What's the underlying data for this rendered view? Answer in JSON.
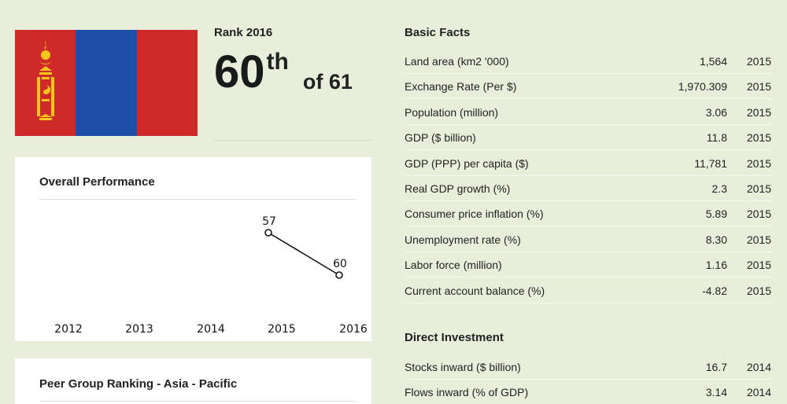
{
  "flag": {
    "country_icon": "mongolia-flag",
    "colors": {
      "red": "#cf2a2a",
      "blue": "#1d4fa8",
      "emblem": "#f5c518"
    }
  },
  "rank": {
    "label": "Rank 2016",
    "number": "60",
    "suffix": "th",
    "of": "of 61"
  },
  "performance": {
    "title": "Overall Performance",
    "chart_data": {
      "type": "line",
      "x": [
        "2012",
        "2013",
        "2014",
        "2015",
        "2016"
      ],
      "series": [
        {
          "values": [
            null,
            null,
            null,
            57,
            60
          ]
        }
      ],
      "data_labels": [
        "",
        "",
        "",
        "57",
        "60"
      ],
      "y_inverted": true,
      "grid": false
    }
  },
  "peer": {
    "title": "Peer Group Ranking - Asia - Pacific"
  },
  "basic_facts": {
    "title": "Basic Facts",
    "rows": [
      {
        "label": "Land area (km2 '000)",
        "value": "1,564",
        "year": "2015"
      },
      {
        "label": "Exchange Rate (Per $)",
        "value": "1,970.309",
        "year": "2015"
      },
      {
        "label": "Population (million)",
        "value": "3.06",
        "year": "2015"
      },
      {
        "label": "GDP ($ billion)",
        "value": "11.8",
        "year": "2015"
      },
      {
        "label": "GDP (PPP) per capita ($)",
        "value": "11,781",
        "year": "2015"
      },
      {
        "label": "Real GDP growth (%)",
        "value": "2.3",
        "year": "2015"
      },
      {
        "label": "Consumer price inflation (%)",
        "value": "5.89",
        "year": "2015"
      },
      {
        "label": "Unemployment rate (%)",
        "value": "8.30",
        "year": "2015"
      },
      {
        "label": "Labor force (million)",
        "value": "1.16",
        "year": "2015"
      },
      {
        "label": "Current account balance (%)",
        "value": "-4.82",
        "year": "2015"
      }
    ]
  },
  "direct_investment": {
    "title": "Direct Investment",
    "rows": [
      {
        "label": "Stocks inward ($ billion)",
        "value": "16.7",
        "year": "2014"
      },
      {
        "label": "Flows inward (% of GDP)",
        "value": "3.14",
        "year": "2014"
      }
    ]
  }
}
